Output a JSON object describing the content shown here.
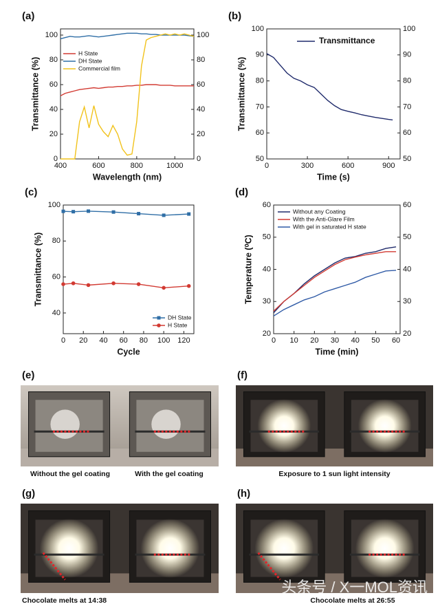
{
  "chart_data": [
    {
      "type": "line",
      "label": "(a)",
      "xlabel": "Wavelength (nm)",
      "ylabel": "Transmittance (%)",
      "xlim": [
        400,
        1100
      ],
      "xticks": [
        400,
        600,
        800,
        1000
      ],
      "ylim": [
        0,
        105
      ],
      "yticks": [
        0,
        20,
        40,
        60,
        80,
        100
      ],
      "y2lim": [
        0,
        105
      ],
      "y2ticks": [
        0,
        20,
        40,
        60,
        80,
        100
      ],
      "legend": "center left",
      "x": [
        400,
        425,
        450,
        475,
        500,
        525,
        550,
        575,
        600,
        625,
        650,
        675,
        700,
        725,
        750,
        775,
        800,
        825,
        850,
        875,
        900,
        925,
        950,
        975,
        1000,
        1025,
        1050,
        1075,
        1100
      ],
      "series": [
        {
          "name": "H State",
          "color": "#d23a32",
          "values": [
            51,
            53,
            54,
            55,
            56,
            56.5,
            57,
            57.5,
            57,
            57.5,
            58,
            58,
            58.5,
            58.5,
            59,
            59,
            59.5,
            59.5,
            60,
            60,
            60,
            59.5,
            59.5,
            59.5,
            59,
            59,
            59,
            59,
            59
          ]
        },
        {
          "name": "DH State",
          "color": "#2f6ea6",
          "values": [
            97,
            98,
            99,
            98.5,
            98.5,
            99,
            99.5,
            99,
            98.5,
            99,
            99.5,
            100,
            100.5,
            101,
            101.5,
            101.5,
            101.5,
            101,
            101,
            100.5,
            100.5,
            100,
            100,
            100,
            100,
            100,
            100,
            99.5,
            99
          ]
        },
        {
          "name": "Commercial film",
          "color": "#f1c21b",
          "axis": "y2",
          "values": [
            0,
            0,
            0,
            0,
            30,
            42,
            25,
            43,
            28,
            22,
            18,
            27,
            20,
            8,
            3,
            4,
            30,
            75,
            96,
            98,
            99,
            100,
            101,
            100,
            101,
            100,
            101,
            100,
            99
          ]
        }
      ]
    },
    {
      "type": "line",
      "label": "(b)",
      "xlabel": "Time (s)",
      "ylabel": "Transmittance (%)",
      "xlim": [
        0,
        985
      ],
      "xticks": [
        0,
        300,
        600,
        900
      ],
      "ylim": [
        50,
        100
      ],
      "yticks": [
        50,
        60,
        70,
        80,
        90,
        100
      ],
      "y2lim": [
        50,
        100
      ],
      "y2ticks": [
        50,
        60,
        70,
        80,
        90,
        100
      ],
      "legend": "upper right",
      "x": [
        0,
        50,
        100,
        150,
        200,
        250,
        300,
        350,
        400,
        450,
        500,
        550,
        600,
        650,
        700,
        750,
        800,
        850,
        900,
        930
      ],
      "series": [
        {
          "name": "Transmittance",
          "color": "#1f2a6b",
          "values": [
            90.5,
            89,
            86,
            83,
            81,
            80,
            78.5,
            77.5,
            75,
            72.5,
            70.5,
            69,
            68.3,
            67.7,
            67,
            66.5,
            66,
            65.6,
            65.2,
            65
          ]
        }
      ]
    },
    {
      "type": "line",
      "label": "(c)",
      "xlabel": "Cycle",
      "ylabel": "Transmittance (%)",
      "xlim": [
        0,
        130
      ],
      "xticks": [
        0,
        20,
        40,
        60,
        80,
        100,
        120
      ],
      "ylim": [
        28.5,
        100
      ],
      "yticks": [
        40,
        60,
        80,
        100
      ],
      "legend": "lower right",
      "x": [
        0,
        10,
        25,
        50,
        75,
        100,
        125
      ],
      "series": [
        {
          "name": "DH State",
          "color": "#2f6ea6",
          "marker": "square",
          "values": [
            96.5,
            96.3,
            96.6,
            96.1,
            95.2,
            94.3,
            95
          ]
        },
        {
          "name": "H State",
          "color": "#d23a32",
          "marker": "circle",
          "values": [
            56,
            56.5,
            55.5,
            56.5,
            56,
            54,
            55
          ]
        }
      ]
    },
    {
      "type": "line",
      "label": "(d)",
      "xlabel": "Time (min)",
      "ylabel": "Temperature (⁰C)",
      "xlim": [
        0,
        62
      ],
      "xticks": [
        0,
        10,
        20,
        30,
        40,
        50,
        60
      ],
      "ylim": [
        20,
        60
      ],
      "yticks": [
        20,
        30,
        40,
        50,
        60
      ],
      "y2lim": [
        20,
        60
      ],
      "y2ticks": [
        20,
        30,
        40,
        50,
        60
      ],
      "legend": "upper left",
      "x": [
        0,
        5,
        10,
        15,
        20,
        25,
        30,
        35,
        40,
        45,
        50,
        55,
        60
      ],
      "series": [
        {
          "name": "Without any Coating",
          "color": "#1f2a6b",
          "values": [
            26.5,
            30,
            32.5,
            35.5,
            38,
            40,
            42,
            43.5,
            44,
            45,
            45.5,
            46.5,
            47
          ]
        },
        {
          "name": "With the Anti-Glare Film",
          "color": "#d23a32",
          "values": [
            27,
            30,
            32.5,
            35,
            37.5,
            39.5,
            41.5,
            43,
            43.8,
            44.5,
            45,
            45.5,
            45.5
          ]
        },
        {
          "name": "With gel in saturated H state",
          "color": "#2f5aa6",
          "values": [
            25.5,
            27.5,
            29,
            30.5,
            31.5,
            33,
            34,
            35,
            36,
            37.5,
            38.5,
            39.5,
            39.7
          ]
        }
      ]
    }
  ],
  "photos": [
    {
      "label": "(e)",
      "captions": [
        "Without the gel coating",
        "With the gel coating"
      ]
    },
    {
      "label": "(f)",
      "captions": [
        "Exposure to 1 sun light intensity"
      ]
    },
    {
      "label": "(g)",
      "captions": [
        "Chocolate melts at 14:38"
      ]
    },
    {
      "label": "(h)",
      "captions": [
        "Chocolate melts at 26:55"
      ]
    }
  ],
  "watermark": "头条号 / X一MOL资讯"
}
